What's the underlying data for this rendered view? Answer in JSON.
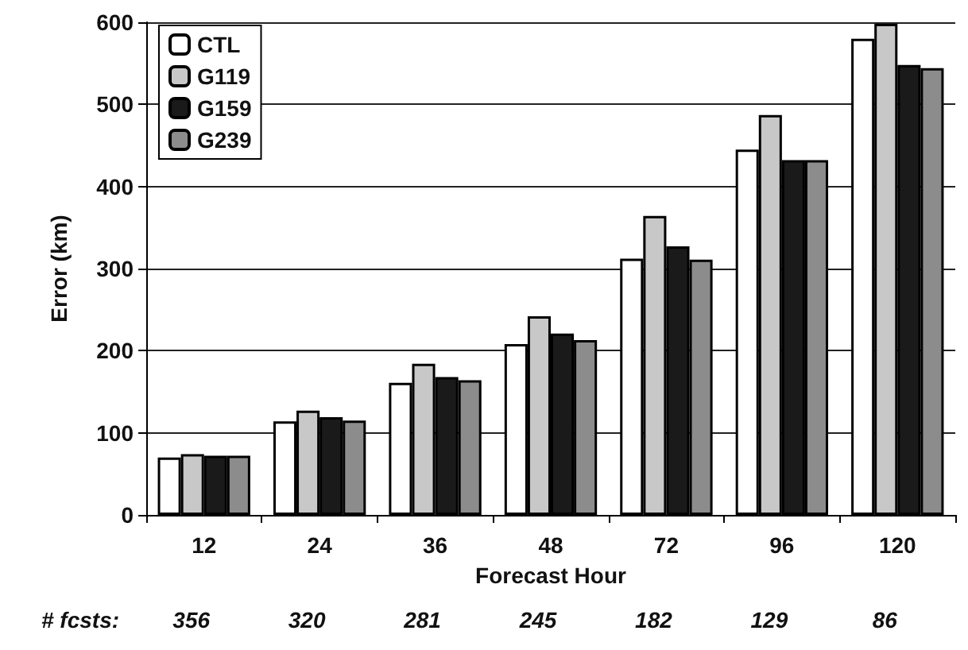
{
  "chart_data": {
    "type": "bar",
    "xlabel": "Forecast Hour",
    "ylabel": "Error (km)",
    "categories": [
      "12",
      "24",
      "36",
      "48",
      "72",
      "96",
      "120"
    ],
    "series": [
      {
        "name": "CTL",
        "color": "#ffffff",
        "values": [
          70,
          114,
          161,
          208,
          312,
          445,
          580
        ]
      },
      {
        "name": "G119",
        "color": "#c8c8c8",
        "values": [
          74,
          127,
          184,
          242,
          364,
          487,
          598
        ]
      },
      {
        "name": "G159",
        "color": "#1a1a1a",
        "values": [
          72,
          119,
          168,
          221,
          327,
          432,
          548
        ]
      },
      {
        "name": "G239",
        "color": "#8c8c8c",
        "values": [
          72,
          115,
          164,
          213,
          311,
          432,
          544
        ]
      }
    ],
    "ylim": [
      0,
      600
    ],
    "yticks": [
      0,
      100,
      200,
      300,
      400,
      500,
      600
    ],
    "grid": "y",
    "legend": "top left",
    "annotations": [
      "# fcsts:",
      "356",
      "320",
      "281",
      "245",
      "182",
      "129",
      "86"
    ]
  }
}
